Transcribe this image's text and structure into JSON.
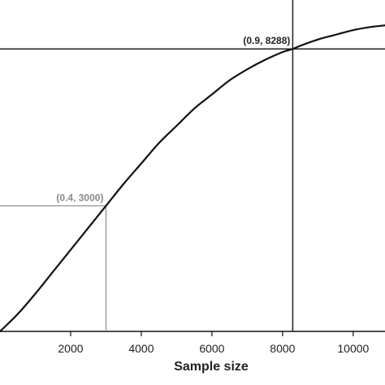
{
  "chart_data": {
    "type": "line",
    "title": "",
    "xlabel": "Sample size",
    "ylabel": "",
    "xlim": [
      0,
      10900
    ],
    "ylim": [
      0,
      1.03
    ],
    "grid": false,
    "x_ticks": [
      {
        "value": 2000,
        "label": "2000"
      },
      {
        "value": 4000,
        "label": "4000"
      },
      {
        "value": 6000,
        "label": "6000"
      },
      {
        "value": 8000,
        "label": "8000"
      },
      {
        "value": 10000,
        "label": "10000"
      }
    ],
    "series": [
      {
        "color": "#111111",
        "x": [
          0,
          500,
          1000,
          1500,
          2000,
          2500,
          3000,
          3500,
          4000,
          4500,
          5000,
          5500,
          6000,
          6500,
          7000,
          7500,
          8000,
          8288,
          8500,
          9000,
          9500,
          10000,
          10500,
          10900
        ],
        "y": [
          0.0,
          0.055,
          0.12,
          0.19,
          0.26,
          0.33,
          0.4,
          0.47,
          0.535,
          0.6,
          0.655,
          0.71,
          0.755,
          0.8,
          0.835,
          0.865,
          0.89,
          0.9,
          0.91,
          0.93,
          0.945,
          0.96,
          0.97,
          0.975
        ]
      }
    ],
    "annotations": [
      {
        "label": "(0.9, 8288)",
        "x": 8288,
        "y": 0.9,
        "color": "#222222"
      },
      {
        "label": "(0.4, 3000)",
        "x": 3000,
        "y": 0.4,
        "color": "#8a8a8a"
      }
    ]
  }
}
